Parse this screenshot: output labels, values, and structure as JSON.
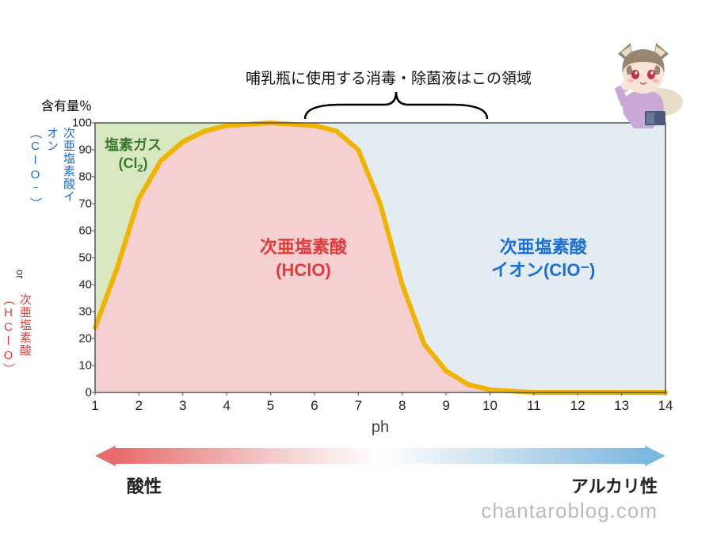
{
  "chart": {
    "type": "area",
    "xlim": [
      1,
      14
    ],
    "ylim": [
      0,
      100
    ],
    "x_ticks": [
      1,
      2,
      3,
      4,
      5,
      6,
      7,
      8,
      9,
      10,
      11,
      12,
      13,
      14
    ],
    "y_ticks": [
      0,
      10,
      20,
      30,
      40,
      50,
      60,
      70,
      80,
      90,
      100
    ],
    "xlabel": "ph",
    "background_color": "#ffffff",
    "curve_color": "#f0b400",
    "curve_width": 6,
    "region_cl2_fill": "#d8e8c0",
    "region_hclo_fill": "#f6cfd1",
    "region_clo_fill": "#e2ecf2",
    "axis_color": "#555",
    "hclo_points": [
      {
        "x": 1,
        "y": 24
      },
      {
        "x": 1.5,
        "y": 46
      },
      {
        "x": 2,
        "y": 72
      },
      {
        "x": 2.5,
        "y": 86
      },
      {
        "x": 3,
        "y": 93
      },
      {
        "x": 3.5,
        "y": 97
      },
      {
        "x": 4,
        "y": 99
      },
      {
        "x": 5,
        "y": 100
      },
      {
        "x": 6,
        "y": 99
      },
      {
        "x": 6.5,
        "y": 97
      },
      {
        "x": 7,
        "y": 90
      },
      {
        "x": 7.5,
        "y": 70
      },
      {
        "x": 8,
        "y": 40
      },
      {
        "x": 8.5,
        "y": 18
      },
      {
        "x": 9,
        "y": 8
      },
      {
        "x": 9.5,
        "y": 3
      },
      {
        "x": 10,
        "y": 1
      },
      {
        "x": 11,
        "y": 0
      },
      {
        "x": 14,
        "y": 0
      }
    ],
    "brace_range_x": [
      6,
      10
    ]
  },
  "labels": {
    "y_title": "含有量％",
    "y_blue_line1": "次亜塩素酸イオン",
    "y_blue_paren": "（ClO⁻）",
    "y_or": "or",
    "y_red_line1": "次亜塩素酸",
    "y_red_paren": "（HClO）",
    "cl2_line1": "塩素ガス",
    "cl2_line2": "(Cl",
    "cl2_sub": "2",
    "cl2_close": ")",
    "hclo_line1": "次亜塩素酸",
    "hclo_line2": "(HClO)",
    "clo_line1": "次亜塩素酸",
    "clo_line2": "イオン(ClO⁻)",
    "top_note": "哺乳瓶に使用する消毒・除菌液はこの領域",
    "acid": "酸性",
    "alkaline": "アルカリ性",
    "watermark": "chantaroblog.com"
  },
  "colors": {
    "blue": "#1a6fd6",
    "red": "#e23a3a",
    "green": "#3a7a2b",
    "curve": "#f0b400",
    "grad_acid": "#e76b6b",
    "grad_alk": "#7cb8e0",
    "watermark": "#bbb"
  }
}
